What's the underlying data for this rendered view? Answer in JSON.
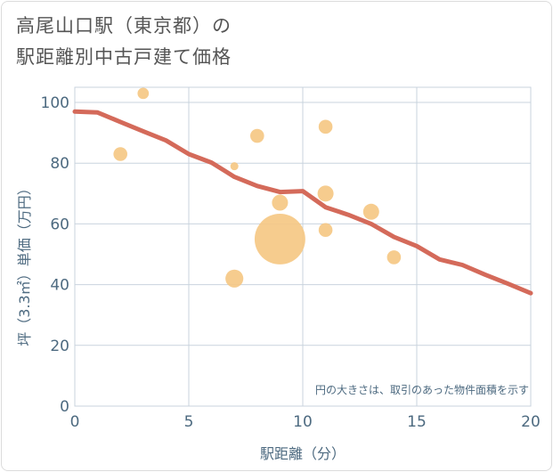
{
  "title": {
    "line1": "高尾山口駅（東京都）の",
    "line2": "駅距離別中古戸建て価格"
  },
  "chart_data": {
    "type": "scatter",
    "xlabel": "駅距離（分）",
    "ylabel": "坪（3.3㎡）単価（万円）",
    "xlim": [
      0,
      20
    ],
    "ylim": [
      0,
      105
    ],
    "xticks": [
      0,
      5,
      10,
      15,
      20
    ],
    "yticks": [
      0,
      20,
      40,
      60,
      80,
      100
    ],
    "grid": true,
    "annotation": "円の大きさは、取引のあった物件面積を示す",
    "colors": {
      "bubble": "#f5c682",
      "trend": "#d46a5a",
      "grid": "#c9d3de",
      "axis_text": "#4d6a80"
    },
    "points": [
      {
        "x": 2,
        "y": 83,
        "size": 3
      },
      {
        "x": 3,
        "y": 103,
        "size": 2
      },
      {
        "x": 7,
        "y": 79,
        "size": 1
      },
      {
        "x": 7,
        "y": 42,
        "size": 5
      },
      {
        "x": 8,
        "y": 89,
        "size": 3
      },
      {
        "x": 9,
        "y": 67,
        "size": 4
      },
      {
        "x": 9,
        "y": 55,
        "size": 40
      },
      {
        "x": 11,
        "y": 92,
        "size": 3
      },
      {
        "x": 11,
        "y": 70,
        "size": 4
      },
      {
        "x": 11,
        "y": 58,
        "size": 3
      },
      {
        "x": 13,
        "y": 64,
        "size": 4
      },
      {
        "x": 14,
        "y": 49,
        "size": 3
      }
    ],
    "trend_line": [
      {
        "x": 0,
        "y": 97
      },
      {
        "x": 1,
        "y": 96.7
      },
      {
        "x": 2,
        "y": 93.6
      },
      {
        "x": 3,
        "y": 90.5
      },
      {
        "x": 4,
        "y": 87.5
      },
      {
        "x": 5,
        "y": 83
      },
      {
        "x": 6,
        "y": 80.2
      },
      {
        "x": 7,
        "y": 75.5
      },
      {
        "x": 8,
        "y": 72.5
      },
      {
        "x": 9,
        "y": 70.5
      },
      {
        "x": 10,
        "y": 70.8
      },
      {
        "x": 11,
        "y": 65.5
      },
      {
        "x": 12,
        "y": 63
      },
      {
        "x": 13,
        "y": 60
      },
      {
        "x": 14,
        "y": 55.7
      },
      {
        "x": 15,
        "y": 52.7
      },
      {
        "x": 16,
        "y": 48.3
      },
      {
        "x": 17,
        "y": 46.5
      },
      {
        "x": 18,
        "y": 43.3
      },
      {
        "x": 19,
        "y": 40.3
      },
      {
        "x": 20,
        "y": 37.2
      }
    ]
  }
}
